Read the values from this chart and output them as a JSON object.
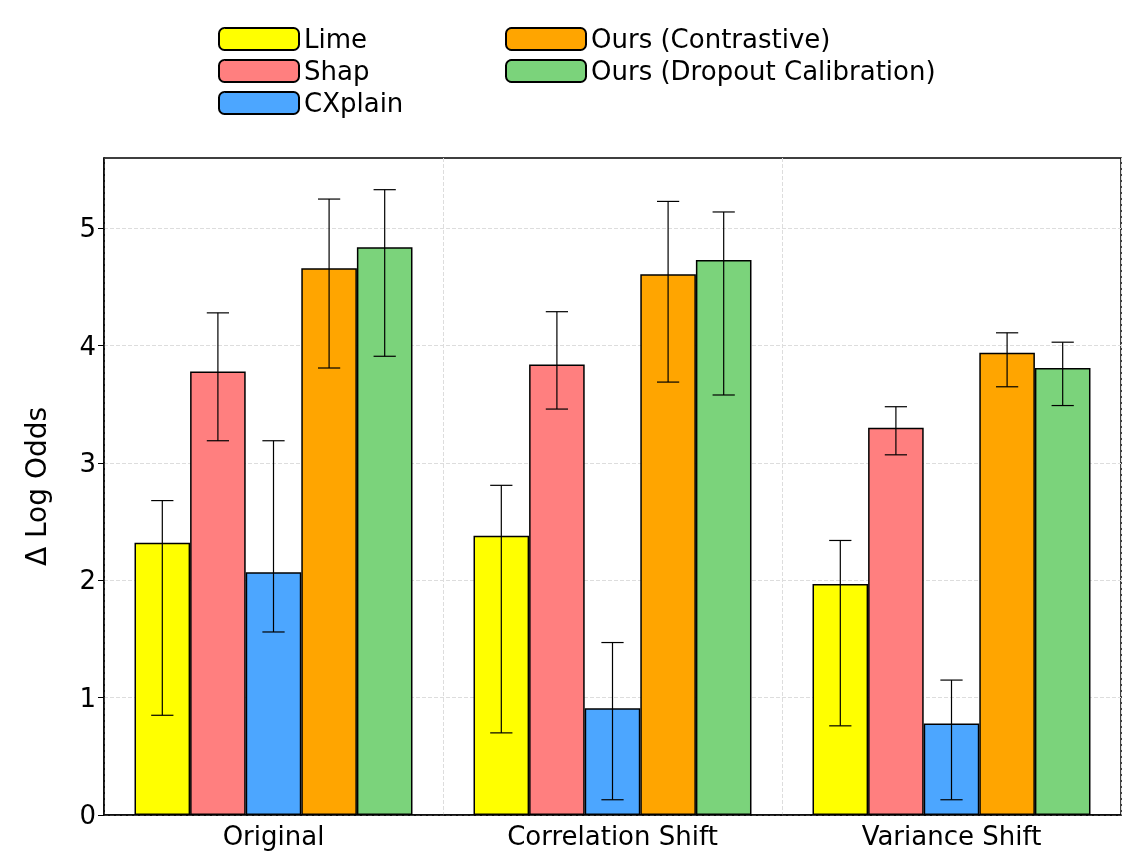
{
  "chart_data": {
    "type": "bar",
    "ylabel": "Δ Log Odds",
    "categories": [
      "Original",
      "Correlation Shift",
      "Variance Shift"
    ],
    "series": [
      {
        "name": "Lime",
        "color": "#ffff00",
        "values": [
          2.32,
          2.38,
          1.97
        ],
        "errors": [
          [
            0.85,
            2.68
          ],
          [
            0.7,
            2.81
          ],
          [
            0.76,
            2.34
          ]
        ]
      },
      {
        "name": "Shap",
        "color": "#ff7f7f",
        "values": [
          3.78,
          3.84,
          3.3
        ],
        "errors": [
          [
            3.19,
            4.28
          ],
          [
            3.46,
            4.29
          ],
          [
            3.07,
            3.48
          ]
        ]
      },
      {
        "name": "CXplain",
        "color": "#4ca6ff",
        "values": [
          2.07,
          0.91,
          0.78
        ],
        "errors": [
          [
            1.56,
            3.19
          ],
          [
            0.13,
            1.47
          ],
          [
            0.13,
            1.15
          ]
        ]
      },
      {
        "name": "Ours (Contrastive)",
        "color": "#ffa500",
        "values": [
          4.66,
          4.61,
          3.94
        ],
        "errors": [
          [
            3.81,
            5.25
          ],
          [
            3.69,
            5.23
          ],
          [
            3.65,
            4.11
          ]
        ]
      },
      {
        "name": "Ours (Dropout Calibration)",
        "color": "#7bd37b",
        "values": [
          4.84,
          4.73,
          3.81
        ],
        "errors": [
          [
            3.91,
            5.33
          ],
          [
            3.58,
            5.14
          ],
          [
            3.49,
            4.03
          ]
        ]
      }
    ],
    "ylim": [
      0,
      5.6
    ],
    "yticks": [
      0,
      1,
      2,
      3,
      4,
      5
    ],
    "grid": true,
    "legend": "top"
  }
}
